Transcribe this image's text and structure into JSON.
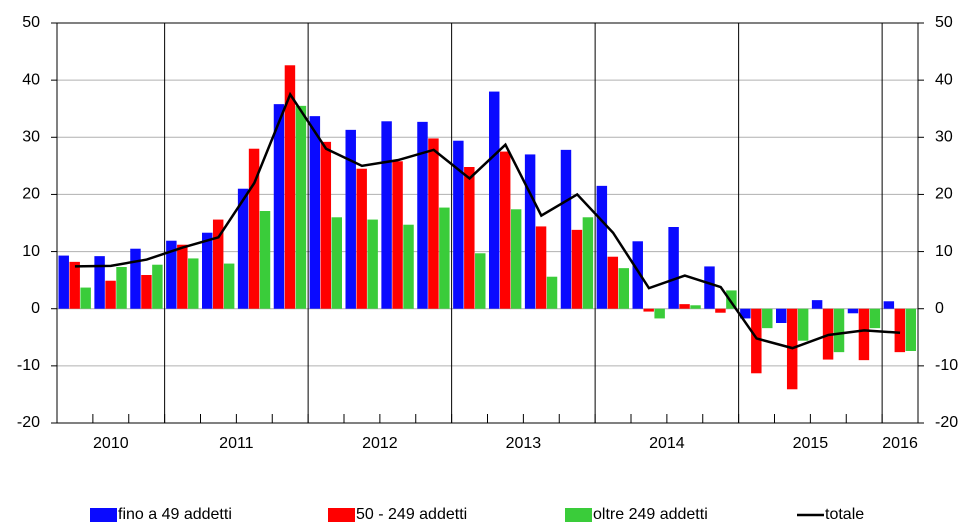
{
  "chart_data": {
    "type": "bar_line",
    "categories": [
      null,
      null,
      null,
      null,
      null,
      null,
      null,
      null,
      null,
      null,
      null,
      null,
      null,
      null,
      null,
      null,
      null,
      null,
      null,
      null,
      null,
      null,
      null,
      null
    ],
    "year_groups": [
      {
        "label": "2010",
        "quarters": 3
      },
      {
        "label": "2011",
        "quarters": 4
      },
      {
        "label": "2012",
        "quarters": 4
      },
      {
        "label": "2013",
        "quarters": 4
      },
      {
        "label": "2014",
        "quarters": 4
      },
      {
        "label": "2015",
        "quarters": 4
      },
      {
        "label": "2016",
        "quarters": 1
      }
    ],
    "series": [
      {
        "name": "fino a 49 addetti",
        "kind": "bar",
        "color": "#0a0aff",
        "values": [
          9.3,
          9.2,
          10.5,
          11.9,
          13.3,
          21,
          35.8,
          33.7,
          31.3,
          32.8,
          32.7,
          29.4,
          38,
          27,
          27.8,
          21.5,
          11.8,
          14.3,
          7.4,
          -1.7,
          -2.5,
          1.5,
          -0.8,
          1.3
        ]
      },
      {
        "name": "50 - 249 addetti",
        "kind": "bar",
        "color": "#ff0000",
        "values": [
          8.2,
          4.9,
          5.9,
          11.2,
          15.6,
          28,
          42.6,
          29.2,
          24.5,
          25.8,
          29.8,
          24.8,
          27.5,
          14.4,
          13.8,
          9.1,
          -0.5,
          0.8,
          -0.7,
          -11.3,
          -14.1,
          -8.9,
          -9,
          -7.6
        ]
      },
      {
        "name": "oltre 249 addetti",
        "kind": "bar",
        "color": "#3acc3a",
        "values": [
          3.7,
          7.3,
          7.7,
          8.8,
          7.9,
          17.1,
          35.5,
          16,
          15.6,
          14.7,
          17.7,
          9.7,
          17.4,
          5.6,
          16,
          7.1,
          -1.7,
          0.6,
          3.2,
          -3.4,
          -5.6,
          -7.6,
          -3.4,
          -7.4
        ]
      },
      {
        "name": "totale",
        "kind": "line",
        "color": "#000000",
        "values": [
          7.4,
          7.5,
          8.6,
          10.7,
          12.5,
          22,
          37.5,
          28,
          25,
          26,
          27.8,
          22.8,
          28.7,
          16.3,
          20,
          13.3,
          3.6,
          5.8,
          3.8,
          -5.2,
          -6.9,
          -4.6,
          -3.8,
          -4.2
        ]
      }
    ],
    "ylim": [
      -20,
      50
    ],
    "yticks": [
      -20,
      -10,
      0,
      10,
      20,
      30,
      40,
      50
    ],
    "y2lim": [
      -20,
      50
    ],
    "y2ticks": [
      -20,
      -10,
      0,
      10,
      20,
      30,
      40,
      50
    ],
    "grid": true,
    "legend": "bottom"
  }
}
